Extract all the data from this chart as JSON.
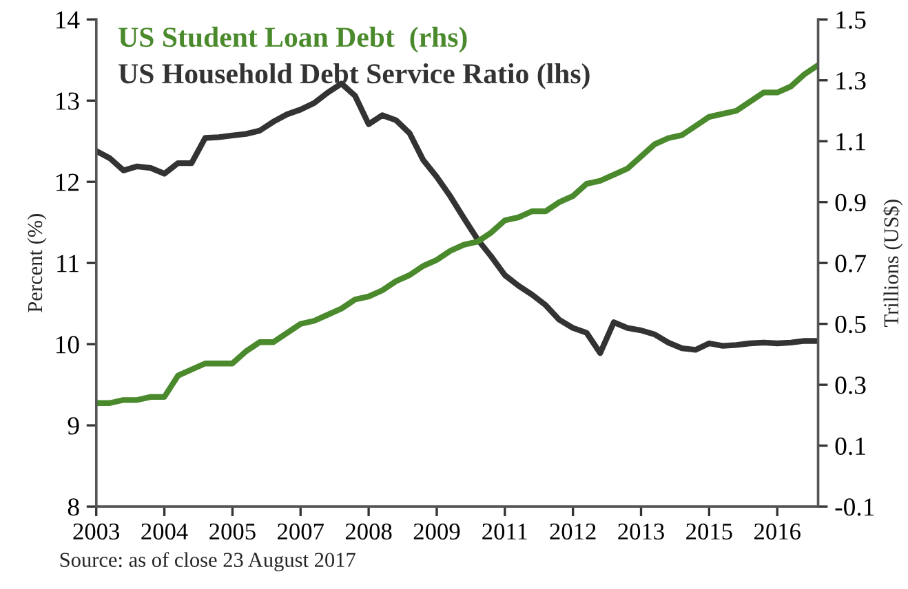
{
  "chart_data": {
    "type": "line",
    "annotations": [
      "Source: as of close 23 August 2017"
    ],
    "ylabel": "Percent (%)",
    "y2label": "Trillions (US$)",
    "categories": [
      "2003",
      null,
      null,
      null,
      null,
      "2004",
      null,
      null,
      null,
      null,
      "2005",
      null,
      null,
      null,
      null,
      "2007",
      null,
      null,
      null,
      null,
      "2008",
      null,
      null,
      null,
      null,
      "2009",
      null,
      null,
      null,
      null,
      "2011",
      null,
      null,
      null,
      null,
      "2012",
      null,
      null,
      null,
      null,
      "2013",
      null,
      null,
      null,
      null,
      "2015",
      null,
      null,
      null,
      null,
      "2016",
      null,
      null,
      null
    ],
    "ylim": [
      8,
      14
    ],
    "yticks": [
      8,
      9,
      10,
      11,
      12,
      13,
      14
    ],
    "y2lim": [
      -0.1,
      1.5
    ],
    "y2ticks": [
      -0.1,
      0.1,
      0.3,
      0.5,
      0.7,
      0.9,
      1.1,
      1.3,
      1.5
    ],
    "legend": "top left",
    "grid": false,
    "marker": "none",
    "line_style": "solid",
    "series": [
      {
        "name": "US Student Loan Debt  (rhs)",
        "color": "#4a8a2c",
        "axis": "y2",
        "values": [
          0.24,
          0.24,
          0.25,
          0.25,
          0.26,
          0.26,
          0.33,
          0.35,
          0.37,
          0.37,
          0.37,
          0.41,
          0.44,
          0.44,
          0.47,
          0.5,
          0.51,
          0.53,
          0.55,
          0.58,
          0.59,
          0.61,
          0.64,
          0.66,
          0.69,
          0.71,
          0.74,
          0.76,
          0.77,
          0.8,
          0.84,
          0.85,
          0.87,
          0.87,
          0.9,
          0.92,
          0.96,
          0.97,
          0.99,
          1.01,
          1.05,
          1.09,
          1.11,
          1.12,
          1.15,
          1.18,
          1.19,
          1.2,
          1.23,
          1.26,
          1.26,
          1.28,
          1.32,
          1.35
        ]
      },
      {
        "name": "US Household Debt Service Ratio (lhs)",
        "color": "#333333",
        "values": [
          12.38,
          12.29,
          12.14,
          12.19,
          12.17,
          12.1,
          12.23,
          12.23,
          12.54,
          12.55,
          12.57,
          12.59,
          12.63,
          12.74,
          12.83,
          12.89,
          12.97,
          13.1,
          13.21,
          13.06,
          12.71,
          12.82,
          12.76,
          12.6,
          12.27,
          12.06,
          11.82,
          11.55,
          11.29,
          11.08,
          10.85,
          10.72,
          10.61,
          10.48,
          10.3,
          10.2,
          10.14,
          9.89,
          10.27,
          10.2,
          10.17,
          10.12,
          10.02,
          9.95,
          9.93,
          10.01,
          9.98,
          9.99,
          10.01,
          10.02,
          10.01,
          10.02,
          10.04,
          10.04
        ]
      }
    ]
  }
}
